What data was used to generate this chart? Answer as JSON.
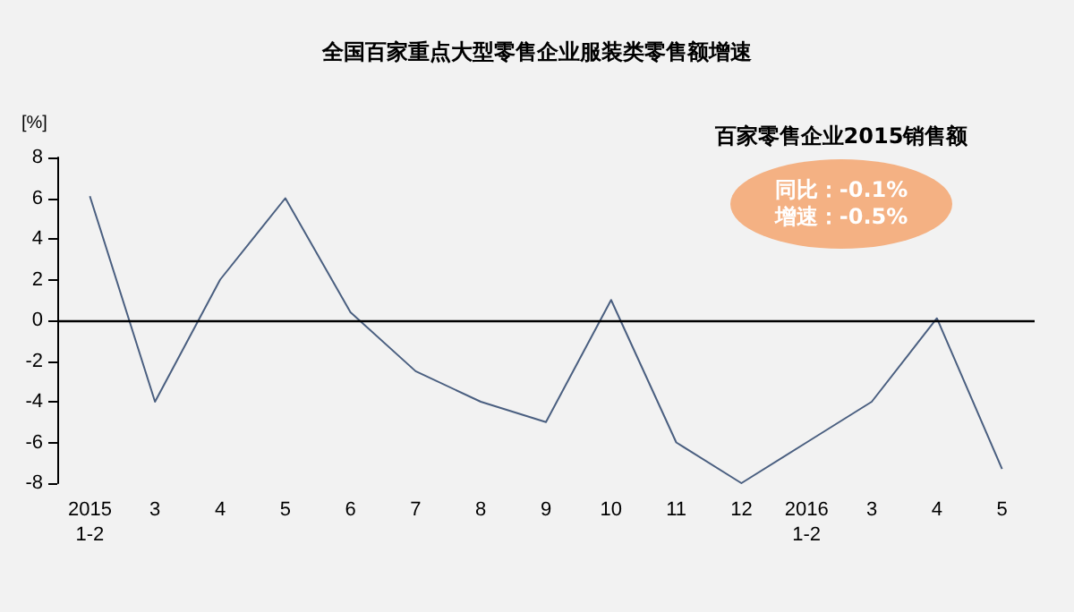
{
  "chart_data": {
    "type": "line",
    "title": "全国百家重点大型零售企业服装类零售额增速",
    "ylabel": "[%]",
    "categories": [
      "2015\n1-2",
      "3",
      "4",
      "5",
      "6",
      "7",
      "8",
      "9",
      "10",
      "11",
      "12",
      "2016\n1-2",
      "3",
      "4",
      "5"
    ],
    "series": [
      {
        "color": "#4a5f80",
        "values": [
          6.1,
          -4,
          2,
          6,
          0.4,
          -2.5,
          -4,
          -5,
          1,
          -6,
          -8,
          -6,
          -4,
          0.1,
          -7.3
        ]
      }
    ],
    "ylim": [
      -8,
      8
    ],
    "yticks": [
      -8,
      -6,
      -4,
      -2,
      0,
      2,
      4,
      6,
      8
    ],
    "grid": false,
    "marker": "none",
    "line_style": "solid",
    "ref_lines": [
      {
        "axis": "y",
        "value": 0,
        "color": "#000000"
      }
    ],
    "annotations": [
      "百家零售企业2015销售额",
      "同比：-0.1%",
      "增速：-0.5%"
    ]
  }
}
